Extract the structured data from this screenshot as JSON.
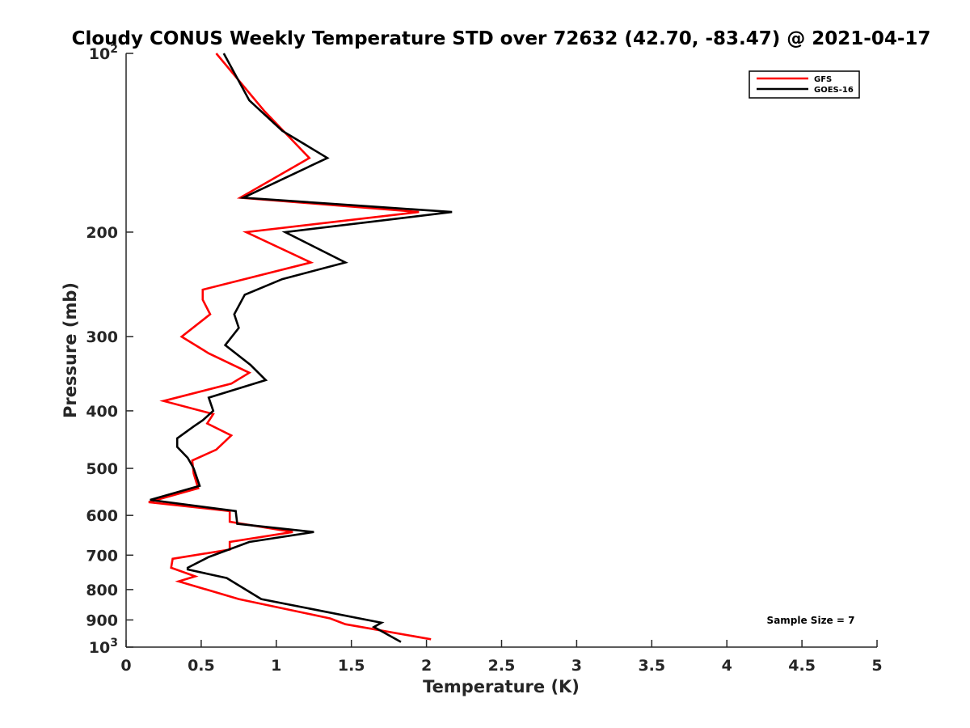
{
  "chart_data": {
    "type": "line",
    "title": "Cloudy CONUS Weekly Temperature STD over 72632 (42.70, -83.47) @ 2021-04-17",
    "xlabel": "Temperature (K)",
    "ylabel": "Pressure (mb)",
    "xlim": [
      0,
      5
    ],
    "ylim": [
      100,
      1000
    ],
    "y_scale": "log",
    "y_reversed": true,
    "x_ticks": [
      "0",
      "0.5",
      "1",
      "1.5",
      "2",
      "2.5",
      "3",
      "3.5",
      "4",
      "4.5",
      "5"
    ],
    "y_ticks": [
      {
        "value": 100,
        "base": "10",
        "exp": "2"
      },
      {
        "value": 200,
        "label": "200"
      },
      {
        "value": 300,
        "label": "300"
      },
      {
        "value": 400,
        "label": "400"
      },
      {
        "value": 500,
        "label": "500"
      },
      {
        "value": 600,
        "label": "600"
      },
      {
        "value": 700,
        "label": "700"
      },
      {
        "value": 800,
        "label": "800"
      },
      {
        "value": 900,
        "label": "900"
      },
      {
        "value": 1000,
        "base": "10",
        "exp": "3"
      }
    ],
    "legend_position": "top-right",
    "annotation": "Sample Size = 7",
    "series": [
      {
        "name": "GFS",
        "color": "#ff0000",
        "points": [
          [
            0.6,
            100
          ],
          [
            0.92,
            125
          ],
          [
            1.22,
            150
          ],
          [
            0.76,
            175
          ],
          [
            1.95,
            185
          ],
          [
            0.8,
            200
          ],
          [
            1.23,
            225
          ],
          [
            0.51,
            250
          ],
          [
            0.51,
            260
          ],
          [
            0.56,
            275
          ],
          [
            0.37,
            300
          ],
          [
            0.55,
            320
          ],
          [
            0.82,
            345
          ],
          [
            0.7,
            360
          ],
          [
            0.25,
            385
          ],
          [
            0.58,
            405
          ],
          [
            0.54,
            420
          ],
          [
            0.7,
            440
          ],
          [
            0.6,
            465
          ],
          [
            0.44,
            485
          ],
          [
            0.45,
            510
          ],
          [
            0.48,
            540
          ],
          [
            0.15,
            570
          ],
          [
            0.69,
            590
          ],
          [
            0.69,
            615
          ],
          [
            1.11,
            640
          ],
          [
            0.69,
            665
          ],
          [
            0.69,
            685
          ],
          [
            0.31,
            710
          ],
          [
            0.3,
            735
          ],
          [
            0.46,
            760
          ],
          [
            0.35,
            775
          ],
          [
            0.75,
            830
          ],
          [
            1.36,
            895
          ],
          [
            1.46,
            915
          ],
          [
            2.03,
            970
          ]
        ]
      },
      {
        "name": "GOES-16",
        "color": "#000000",
        "points": [
          [
            0.65,
            100
          ],
          [
            0.82,
            120
          ],
          [
            1.04,
            135
          ],
          [
            1.34,
            150
          ],
          [
            0.78,
            175
          ],
          [
            2.17,
            185
          ],
          [
            1.06,
            200
          ],
          [
            1.46,
            225
          ],
          [
            1.04,
            240
          ],
          [
            0.79,
            255
          ],
          [
            0.72,
            275
          ],
          [
            0.75,
            290
          ],
          [
            0.66,
            310
          ],
          [
            0.83,
            335
          ],
          [
            0.93,
            355
          ],
          [
            0.55,
            380
          ],
          [
            0.58,
            400
          ],
          [
            0.51,
            415
          ],
          [
            0.45,
            425
          ],
          [
            0.34,
            445
          ],
          [
            0.34,
            460
          ],
          [
            0.41,
            480
          ],
          [
            0.45,
            500
          ],
          [
            0.49,
            535
          ],
          [
            0.16,
            565
          ],
          [
            0.73,
            590
          ],
          [
            0.74,
            620
          ],
          [
            1.25,
            640
          ],
          [
            0.82,
            665
          ],
          [
            0.55,
            705
          ],
          [
            0.41,
            735
          ],
          [
            0.41,
            740
          ],
          [
            0.67,
            765
          ],
          [
            0.9,
            830
          ],
          [
            1.7,
            910
          ],
          [
            1.65,
            925
          ],
          [
            1.83,
            980
          ]
        ]
      }
    ]
  }
}
